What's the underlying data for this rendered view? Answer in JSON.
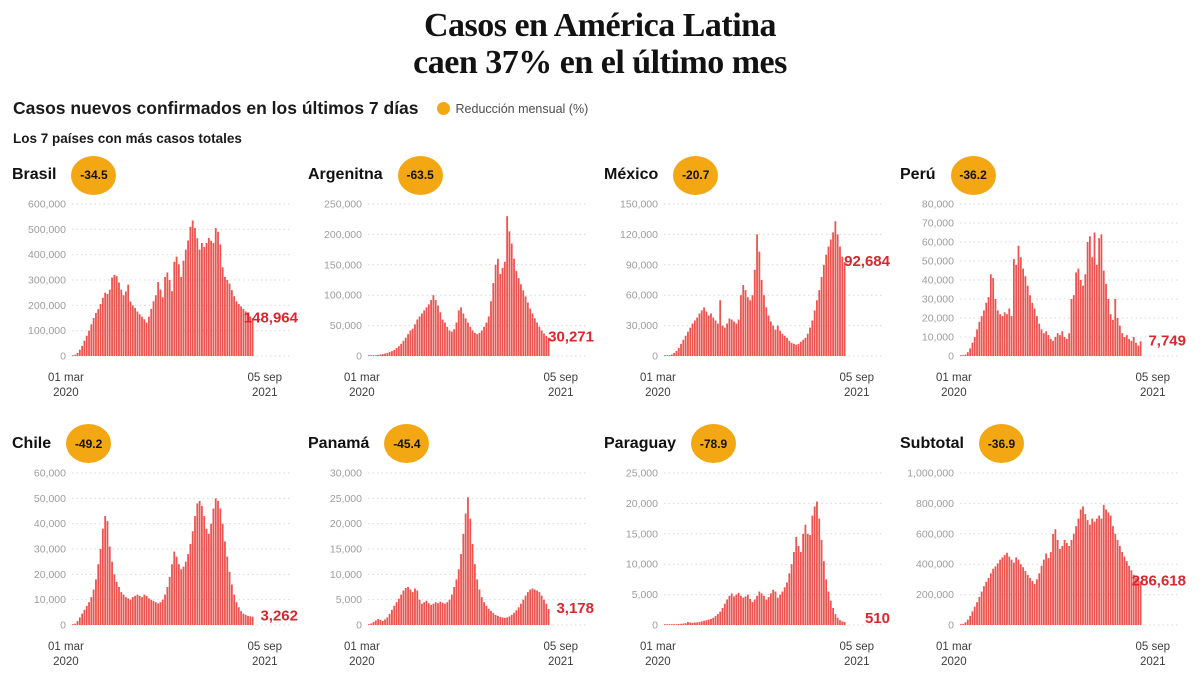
{
  "header": {
    "title_line1": "Casos en América Latina",
    "title_line2": "caen 37% en el último mes",
    "subtitle": "Casos nuevos confirmados en los últimos 7 días",
    "legend_label": "Reducción mensual (%)",
    "note": "Los 7 países con más casos totales"
  },
  "axis": {
    "start_day": "01 mar",
    "start_year": "2020",
    "end_day": "05 sep",
    "end_year": "2021"
  },
  "colors": {
    "bar": "#EC544E",
    "value_label": "#D7282D",
    "badge": "#F3A712",
    "grid": "#D9D9D9",
    "tick_text": "#9C9C9C"
  },
  "chart_data": {
    "type": "bar",
    "x_range": [
      "01 mar 2020",
      "05 sep 2021"
    ],
    "unit": "casos nuevos confirmados por semana (últimos 7 días)",
    "charts": [
      {
        "country": "Brasil",
        "reduction": "-34.5",
        "end_label": "148,964",
        "end_value": 148964,
        "ymax": 600000,
        "ytick_step": 100000,
        "values": [
          2000,
          5000,
          12000,
          25000,
          40000,
          60000,
          80000,
          100000,
          125000,
          150000,
          170000,
          185000,
          205000,
          230000,
          250000,
          245000,
          262000,
          310000,
          320000,
          315000,
          290000,
          262000,
          240000,
          255000,
          282000,
          215000,
          200000,
          190000,
          176000,
          165000,
          155000,
          145000,
          132000,
          155000,
          186000,
          216000,
          240000,
          292000,
          262000,
          232000,
          312000,
          330000,
          300000,
          256000,
          372000,
          392000,
          362000,
          312000,
          376000,
          420000,
          456000,
          510000,
          535000,
          505000,
          465000,
          420000,
          446000,
          430000,
          446000,
          466000,
          455000,
          446000,
          505000,
          490000,
          440000,
          350000,
          312000,
          300000,
          286000,
          260000,
          236000,
          216000,
          205000,
          196000,
          186000,
          176000,
          166000,
          156000,
          148964
        ]
      },
      {
        "country": "Argenitna",
        "reduction": "-63.5",
        "end_label": "30,271",
        "end_value": 30271,
        "ymax": 250000,
        "ytick_step": 50000,
        "values": [
          100,
          300,
          700,
          1200,
          1800,
          2500,
          3200,
          4000,
          5000,
          6500,
          8000,
          10000,
          13000,
          16000,
          20000,
          25000,
          30000,
          36000,
          42000,
          45000,
          52000,
          60000,
          65000,
          70000,
          75000,
          80000,
          85000,
          92000,
          100000,
          92000,
          83000,
          72000,
          60000,
          55000,
          48000,
          42000,
          40000,
          44000,
          55000,
          75000,
          80000,
          70000,
          62000,
          55000,
          48000,
          42000,
          38000,
          36000,
          38000,
          42000,
          48000,
          55000,
          65000,
          90000,
          120000,
          150000,
          160000,
          135000,
          145000,
          155000,
          230000,
          205000,
          185000,
          160000,
          140000,
          128000,
          118000,
          108000,
          98000,
          88000,
          78000,
          70000,
          62000,
          55000,
          48000,
          42000,
          37000,
          33000,
          30271
        ]
      },
      {
        "country": "México",
        "reduction": "-20.7",
        "end_label": "92,684",
        "end_value": 92684,
        "ymax": 150000,
        "ytick_step": 30000,
        "values": [
          100,
          300,
          800,
          1500,
          3000,
          5000,
          8000,
          12000,
          16000,
          20000,
          24000,
          28000,
          32000,
          35000,
          38000,
          42000,
          45000,
          48000,
          44000,
          40000,
          42000,
          38000,
          35000,
          32000,
          55000,
          30000,
          28000,
          32000,
          37000,
          36000,
          34000,
          32000,
          36000,
          60000,
          70000,
          65000,
          58000,
          55000,
          60000,
          85000,
          120000,
          103000,
          75000,
          60000,
          48000,
          40000,
          34000,
          30000,
          26000,
          30000,
          25000,
          22000,
          20000,
          18000,
          15000,
          13000,
          12000,
          11000,
          12000,
          14000,
          16000,
          18000,
          22000,
          28000,
          35000,
          45000,
          55000,
          65000,
          78000,
          90000,
          100000,
          108000,
          115000,
          122000,
          133000,
          120000,
          108000,
          98000,
          92684
        ]
      },
      {
        "country": "Perú",
        "reduction": "-36.2",
        "end_label": "7,749",
        "end_value": 7749,
        "ymax": 80000,
        "ytick_step": 10000,
        "values": [
          100,
          300,
          800,
          2000,
          4000,
          7000,
          10000,
          14000,
          18000,
          21000,
          24000,
          28000,
          31000,
          43000,
          41000,
          30000,
          24000,
          22000,
          21000,
          23000,
          22000,
          25000,
          21000,
          51000,
          48000,
          58000,
          52000,
          46000,
          42000,
          37000,
          32000,
          28000,
          25000,
          21000,
          17000,
          14000,
          12000,
          13000,
          11000,
          9000,
          8000,
          10000,
          12000,
          11000,
          13000,
          10000,
          9000,
          12000,
          30000,
          32000,
          44000,
          46000,
          40000,
          37000,
          43000,
          60000,
          63000,
          52000,
          65000,
          48000,
          62000,
          64000,
          45000,
          38000,
          30000,
          22000,
          19000,
          30000,
          20000,
          16000,
          12000,
          10000,
          11000,
          9000,
          8000,
          10000,
          7000,
          5500,
          7749
        ]
      },
      {
        "country": "Chile",
        "reduction": "-49.2",
        "end_label": "3,262",
        "end_value": 3262,
        "ymax": 60000,
        "ytick_step": 10000,
        "values": [
          200,
          500,
          1500,
          3000,
          4500,
          6000,
          7500,
          9000,
          11000,
          14000,
          18000,
          24000,
          30000,
          38000,
          43000,
          41000,
          31000,
          25000,
          20000,
          17000,
          15000,
          13000,
          12000,
          11000,
          10500,
          10000,
          11000,
          11500,
          12000,
          11500,
          11000,
          12000,
          11500,
          10500,
          10000,
          9500,
          9000,
          8500,
          9000,
          10000,
          12000,
          15000,
          19000,
          24000,
          29000,
          27000,
          24000,
          22000,
          23000,
          25000,
          28000,
          32000,
          37000,
          43000,
          48000,
          49000,
          47000,
          43000,
          38000,
          36000,
          40000,
          46000,
          50000,
          49000,
          46000,
          40000,
          33000,
          27000,
          21000,
          16000,
          12000,
          9000,
          7000,
          5500,
          4500,
          4000,
          3600,
          3400,
          3262
        ]
      },
      {
        "country": "Panamá",
        "reduction": "-45.4",
        "end_label": "3,178",
        "end_value": 3178,
        "ymax": 30000,
        "ytick_step": 5000,
        "values": [
          100,
          300,
          600,
          900,
          1200,
          1000,
          800,
          1100,
          1500,
          2200,
          3000,
          3800,
          4500,
          5200,
          6000,
          6800,
          7300,
          7500,
          7000,
          6500,
          7200,
          6800,
          5000,
          4200,
          4500,
          4800,
          4300,
          4000,
          4200,
          4500,
          4300,
          4600,
          4400,
          4200,
          4500,
          5000,
          6000,
          7500,
          9000,
          11000,
          14000,
          18000,
          22000,
          25200,
          21000,
          16000,
          12000,
          9000,
          7000,
          5500,
          4500,
          3800,
          3200,
          2800,
          2400,
          2000,
          1800,
          1600,
          1500,
          1400,
          1500,
          1700,
          2000,
          2400,
          2900,
          3500,
          4200,
          5000,
          5800,
          6500,
          7000,
          7200,
          7000,
          6800,
          6500,
          5800,
          5000,
          4200,
          3178
        ]
      },
      {
        "country": "Paraguay",
        "reduction": "-78.9",
        "end_label": "510",
        "end_value": 510,
        "ymax": 25000,
        "ytick_step": 5000,
        "values": [
          20,
          40,
          60,
          80,
          100,
          130,
          160,
          200,
          250,
          300,
          500,
          400,
          350,
          400,
          450,
          500,
          600,
          700,
          800,
          900,
          1000,
          1200,
          1500,
          1800,
          2200,
          2800,
          3500,
          4200,
          4800,
          5200,
          4700,
          5000,
          5300,
          4800,
          4500,
          4700,
          5000,
          4300,
          3800,
          4200,
          4800,
          5500,
          5200,
          4800,
          4200,
          4600,
          5200,
          5800,
          5500,
          4500,
          5000,
          5500,
          6200,
          7000,
          8500,
          10000,
          12000,
          14500,
          13000,
          12000,
          15000,
          16500,
          15000,
          14800,
          18000,
          19500,
          20300,
          17500,
          14000,
          10500,
          7500,
          5500,
          4000,
          2800,
          1800,
          1200,
          800,
          600,
          510
        ]
      },
      {
        "country": "Subtotal",
        "reduction": "-36.9",
        "end_label": "286,618",
        "end_value": 286618,
        "ymax": 1000000,
        "ytick_step": 200000,
        "values": [
          3000,
          8000,
          18000,
          35000,
          60000,
          90000,
          120000,
          150000,
          185000,
          220000,
          255000,
          285000,
          310000,
          340000,
          370000,
          385000,
          405000,
          430000,
          445000,
          460000,
          475000,
          450000,
          430000,
          410000,
          445000,
          430000,
          400000,
          380000,
          355000,
          330000,
          310000,
          290000,
          270000,
          300000,
          340000,
          390000,
          430000,
          470000,
          440000,
          480000,
          600000,
          630000,
          560000,
          500000,
          520000,
          560000,
          540000,
          520000,
          560000,
          600000,
          650000,
          700000,
          760000,
          780000,
          730000,
          690000,
          660000,
          700000,
          680000,
          700000,
          720000,
          700000,
          790000,
          760000,
          740000,
          720000,
          650000,
          600000,
          560000,
          520000,
          480000,
          450000,
          420000,
          390000,
          360000,
          330000,
          310000,
          295000,
          286618
        ]
      }
    ]
  }
}
